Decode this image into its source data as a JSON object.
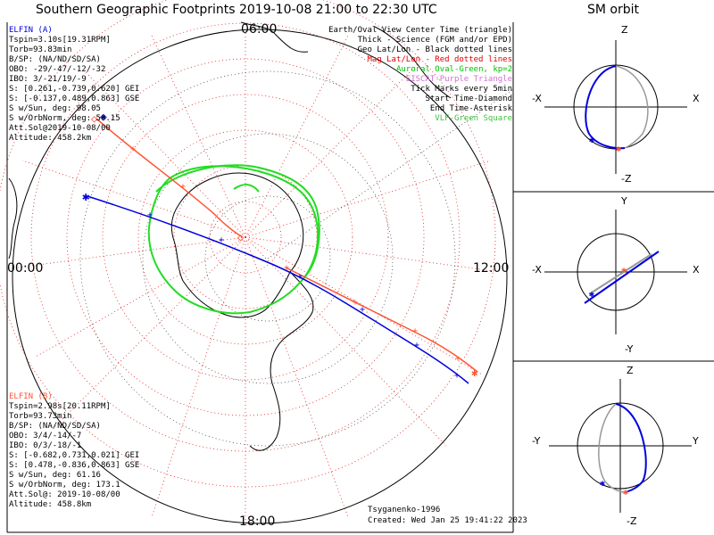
{
  "title": "Southern Geographic Footprints 2019-10-08 21:00 to 22:30 UTC",
  "orbit_title": "SM orbit",
  "hours": {
    "top": "06:00",
    "left": "00:00",
    "right": "12:00",
    "bottom": "18:00"
  },
  "legend": [
    {
      "text": "Earth/Oval View Center Time (triangle)",
      "color": "#000000"
    },
    {
      "text": "Thick - Science (FGM and/or EPD)",
      "color": "#000000"
    },
    {
      "text": "Geo Lat/Lon - Black dotted lines",
      "color": "#000000"
    },
    {
      "text": "Mag Lat/Lon - Red dotted lines",
      "color": "#e00000"
    },
    {
      "text": "Auroral Oval-Green, kp=2",
      "color": "#00c000"
    },
    {
      "text": "EISCAT-Purple Triangle",
      "color": "#d070d0"
    },
    {
      "text": "Tick Marks every 5min",
      "color": "#000000"
    },
    {
      "text": "Start Time-Diamond",
      "color": "#000000"
    },
    {
      "text": "End Time-Asterisk",
      "color": "#000000"
    },
    {
      "text": "VLF-Green Square",
      "color": "#40c040"
    }
  ],
  "elfin_a": {
    "name": "ELFIN (A)",
    "lines": [
      "Tspin=3.10s[19.31RPM]",
      "Torb=93.83min",
      "B/SP: (NA/ND/SD/SA)",
      "OBO: -29/-47/-12/-32",
      "IBO: 3/-21/19/-9",
      "S: [0.261,-0.739,0.620] GEI",
      "S: [-0.137,0.489,0.863] GSE",
      "S w/Sun, deg: 98.05",
      "S w/OrbNorm, deg: 50.15",
      "Att.Sol@2019-10-08/00",
      "Altitude: 458.2km"
    ]
  },
  "elfin_b": {
    "name": "ELFIN (B)",
    "lines": [
      "Tspin=2.98s[20.11RPM]",
      "Torb=93.73min",
      "B/SP: (NA/ND/SD/SA)",
      "OBO: 3/4/-14/-7",
      "IBO: 0/3/-18/-1",
      "S: [-0.682,0.731,0.021] GEI",
      "S: [0.478,-0.836,0.863] GSE",
      "S w/Sun, deg: 61.16",
      "S w/OrbNorm, deg: 173.1",
      "Att.Sol@: 2019-10-08/00",
      "Altitude: 458.8km"
    ]
  },
  "credit": "Tsyganenko-1996",
  "created": "Created: Wed Jan 25 19:41:22 2023",
  "orbit_panels": [
    {
      "top": "Z",
      "bottom": "-Z",
      "left": "-X",
      "right": "X"
    },
    {
      "top": "Y",
      "bottom": "-Y",
      "left": "-X",
      "right": "X"
    },
    {
      "top": "Z",
      "bottom": "-Z",
      "left": "-Y",
      "right": "Y"
    }
  ],
  "colors": {
    "elfin_a": "#0000dd",
    "elfin_b": "#ff5533",
    "oval": "#22dd22",
    "grid_red": "#e02020"
  }
}
